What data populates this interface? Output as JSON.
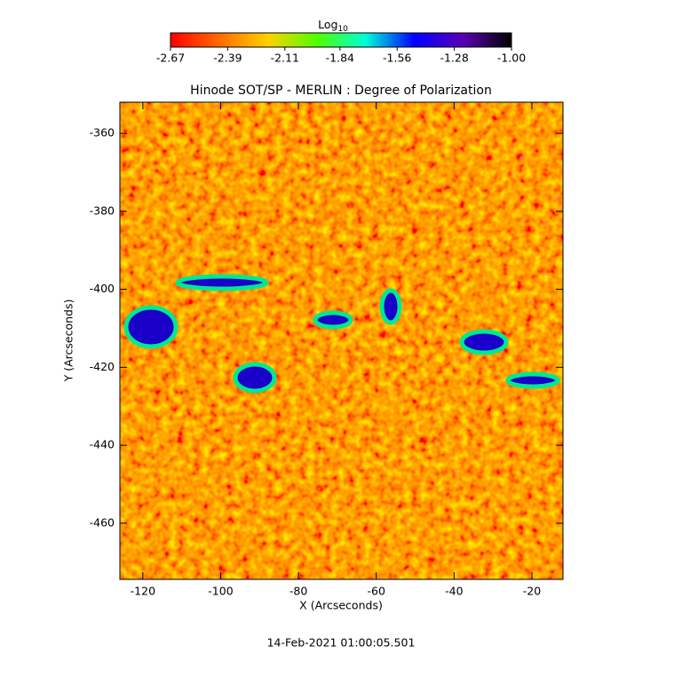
{
  "chart_data": {
    "type": "heatmap",
    "title": "Hinode SOT/SP - MERLIN : Degree of Polarization",
    "x_label": "X (Arcseconds)",
    "y_label": "Y (Arcseconds)",
    "footer": "14-Feb-2021 01:00:05.501",
    "colorbar_label": "Log",
    "colorbar_label_subscript": "10",
    "colormap": [
      "#ff0000",
      "#ff6a00",
      "#ffd200",
      "#50ff00",
      "#00ffd8",
      "#0000ff",
      "#5a00b4",
      "#000000"
    ],
    "clim": [
      -2.67,
      -1
    ],
    "cticks": [
      -2.67,
      -2.39,
      -2.11,
      -1.84,
      -1.56,
      -1.28,
      {
        "value": -1,
        "label": "-1.00"
      }
    ],
    "xlim": [
      -125.9,
      -12.0
    ],
    "xticks": [
      -120,
      -100,
      -80,
      -60,
      -40,
      -20
    ],
    "ylim": [
      -474.4,
      -352.0
    ],
    "yticks": [
      -360,
      -380,
      -400,
      -420,
      -440,
      -460
    ]
  }
}
